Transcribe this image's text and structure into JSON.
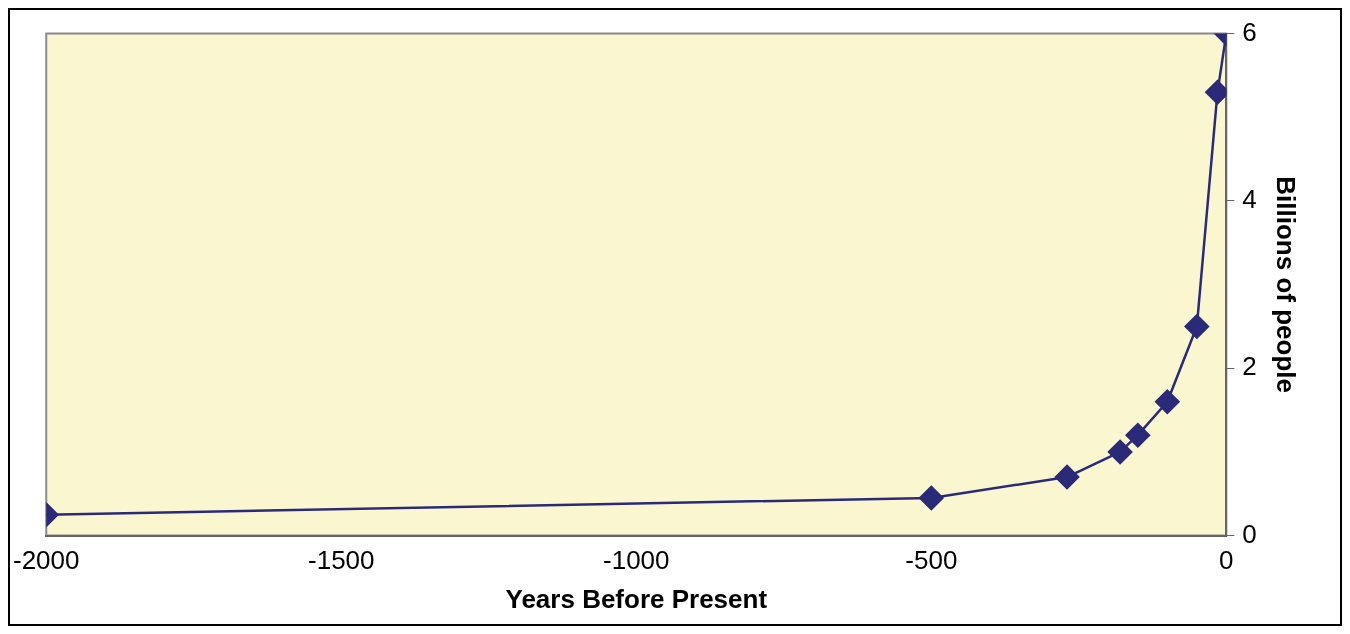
{
  "chart_data": {
    "type": "line",
    "xlabel": "Years Before Present",
    "ylabel": "Billions of people",
    "x": [
      -2000,
      -500,
      -270,
      -180,
      -150,
      -100,
      -50,
      -15,
      0
    ],
    "series": [
      {
        "color": "#2b2a78",
        "values": [
          0.25,
          0.45,
          0.7,
          1.0,
          1.2,
          1.6,
          2.5,
          5.3,
          6
        ]
      }
    ],
    "xlim": [
      -2000,
      0
    ],
    "xticks": [
      -2000,
      -1500,
      -1000,
      -500,
      0
    ],
    "ylim": [
      0,
      6
    ],
    "yticks": [
      0,
      2,
      4,
      6
    ],
    "grid": false,
    "legend": false,
    "marker": "diamond",
    "line_style": "solid"
  }
}
